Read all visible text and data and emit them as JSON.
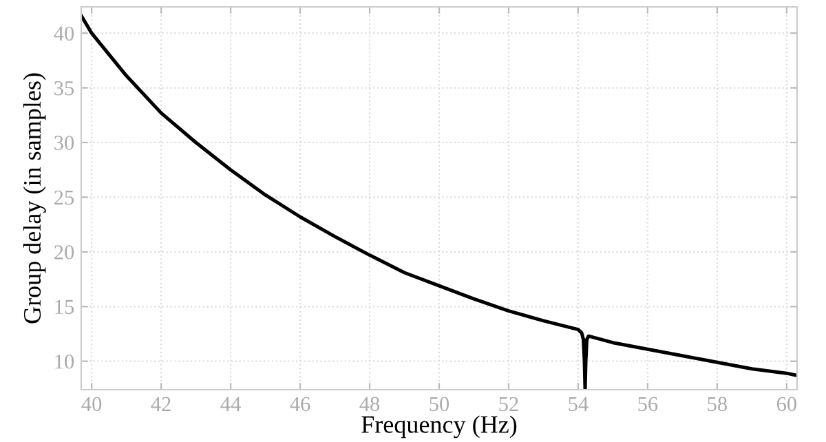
{
  "chart_data": {
    "type": "line",
    "xlabel": "Frequency (Hz)",
    "ylabel": "Group delay (in samples)",
    "x": [
      39.7,
      40,
      41,
      42,
      43,
      44,
      45,
      46,
      47,
      48,
      49,
      50,
      51,
      52,
      53,
      54,
      54.1,
      54.15,
      54.18,
      54.2,
      54.22,
      54.25,
      54.3,
      55,
      56,
      57,
      58,
      59,
      60,
      60.3
    ],
    "series": [
      {
        "color": "#000000",
        "values": [
          41.6,
          40.0,
          36.1,
          32.7,
          30.0,
          27.5,
          25.2,
          23.2,
          21.4,
          19.7,
          18.1,
          16.9,
          15.7,
          14.6,
          13.7,
          12.9,
          12.6,
          12.0,
          10.0,
          7.4,
          10.0,
          12.0,
          12.3,
          11.7,
          11.1,
          10.5,
          9.9,
          9.3,
          8.9,
          8.7
        ]
      }
    ],
    "xlim": [
      39.7,
      60.3
    ],
    "ylim": [
      7.4,
      42.4
    ],
    "xticks": [
      40,
      42,
      44,
      46,
      48,
      50,
      52,
      54,
      56,
      58,
      60
    ],
    "yticks": [
      10,
      15,
      20,
      25,
      30,
      35,
      40
    ],
    "grid": true,
    "line_style": "solid",
    "marker": "none"
  }
}
